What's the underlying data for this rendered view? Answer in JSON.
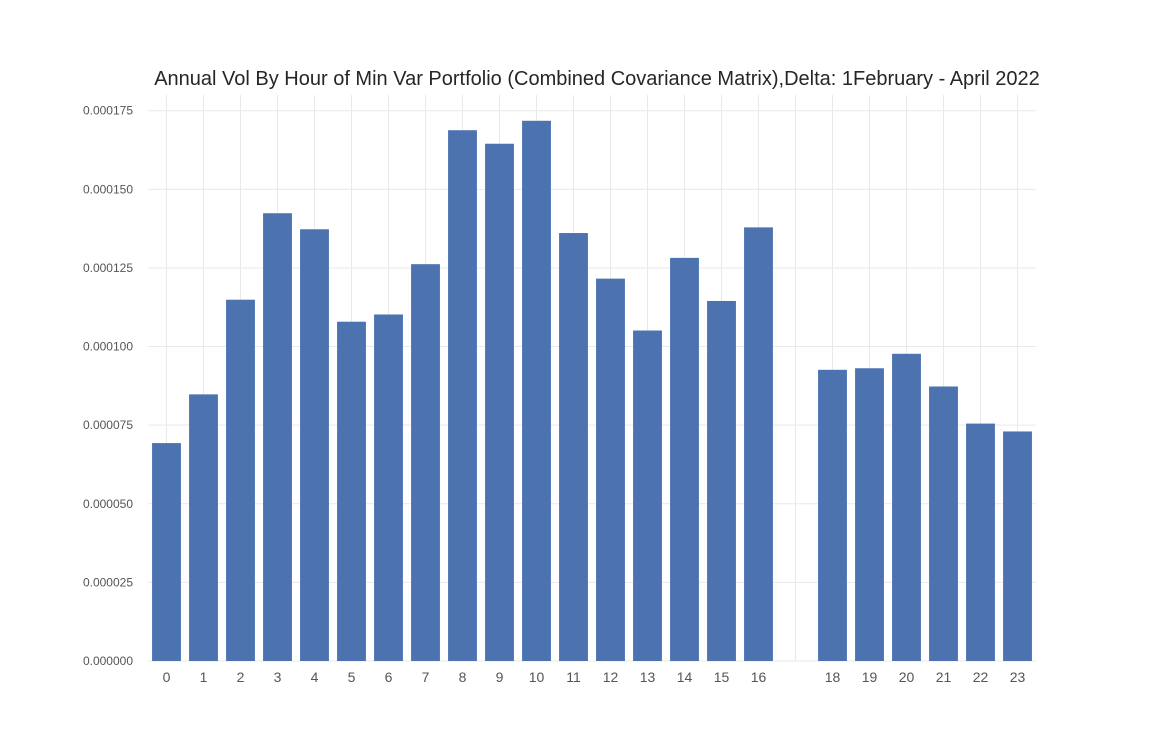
{
  "chart_data": {
    "type": "bar",
    "title": "Annual Vol By Hour of Min Var Portfolio (Combined Covariance Matrix),Delta: 1February - April 2022",
    "xlabel": "",
    "ylabel": "",
    "categories": [
      0,
      1,
      2,
      3,
      4,
      5,
      6,
      7,
      8,
      9,
      10,
      11,
      12,
      13,
      14,
      15,
      16,
      18,
      19,
      20,
      21,
      22,
      23
    ],
    "category_labels": [
      "0",
      "1",
      "2",
      "3",
      "4",
      "5",
      "6",
      "7",
      "8",
      "9",
      "10",
      "11",
      "12",
      "13",
      "14",
      "15",
      "16",
      "18",
      "19",
      "20",
      "21",
      "22",
      "23"
    ],
    "values": [
      6.93e-05,
      8.48e-05,
      0.0001149,
      0.0001424,
      0.0001373,
      0.0001079,
      0.0001102,
      0.0001262,
      0.0001688,
      0.0001645,
      0.0001718,
      0.0001361,
      0.0001216,
      0.0001051,
      0.0001282,
      0.0001145,
      0.0001379,
      9.26e-05,
      9.31e-05,
      9.77e-05,
      8.73e-05,
      7.55e-05,
      7.3e-05
    ],
    "xlim": [
      -0.5,
      23.5
    ],
    "ylim": [
      0,
      0.00018
    ],
    "yticks": [
      0,
      2.5e-05,
      5e-05,
      7.5e-05,
      0.0001,
      0.000125,
      0.00015,
      0.000175
    ],
    "ytick_labels": [
      "0.000000",
      "0.000025",
      "0.000050",
      "0.000075",
      "0.000100",
      "0.000125",
      "0.000150",
      "0.000175"
    ],
    "grid": true,
    "legend": "none",
    "bar_color": "#4c72b0"
  }
}
